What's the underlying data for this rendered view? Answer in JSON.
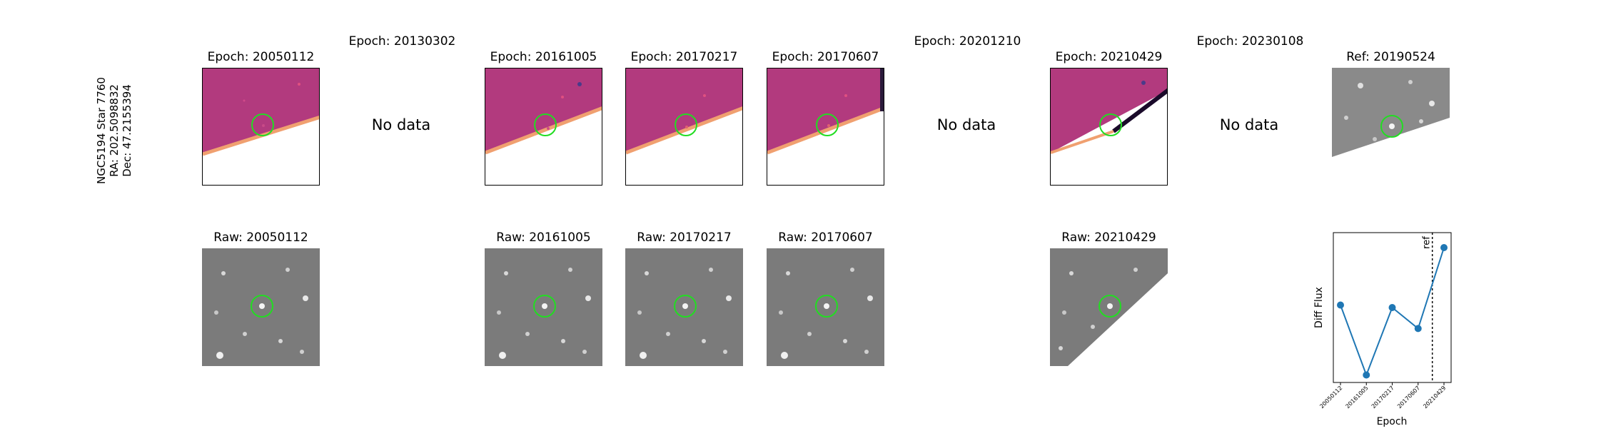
{
  "star_label": [
    "NGC5194 Star 7760",
    "RA: 202.5098832",
    "Dec: 47.2155394"
  ],
  "top_titles": [
    "Epoch: 20050112",
    "Epoch: 20130302",
    "Epoch: 20161005",
    "Epoch: 20170217",
    "Epoch: 20170607",
    "Epoch: 20201210",
    "Epoch: 20210429",
    "Epoch: 20230108",
    "Ref: 20190524"
  ],
  "no_data_label": "No data",
  "bottom_titles": [
    "Raw: 20050112",
    "Raw: 20161005",
    "Raw: 20170217",
    "Raw: 20170607",
    "Raw: 20210429"
  ],
  "colors": {
    "diff_fill": "#b23a7e",
    "raw_fill": "#7b7b7b",
    "ref_fill": "#8a8a8a",
    "circle": "#22dd22",
    "edge_orange": "#f0a070",
    "line": "#1f77b4"
  },
  "icons": [
    "aperture-circle-icon"
  ],
  "chart_data": {
    "type": "line",
    "title": "",
    "xlabel": "Epoch",
    "ylabel": "Diff Flux",
    "categories": [
      "20050112",
      "20161005",
      "20170217",
      "20170607",
      "20210429"
    ],
    "values": [
      0.55,
      -0.85,
      0.5,
      0.08,
      1.7
    ],
    "ylim": [
      -1.0,
      2.0
    ],
    "ref_line_label": "ref",
    "ref_position_between": [
      "20170607",
      "20210429"
    ],
    "grid": false,
    "legend": "none",
    "y_tick_labels": "hidden"
  }
}
